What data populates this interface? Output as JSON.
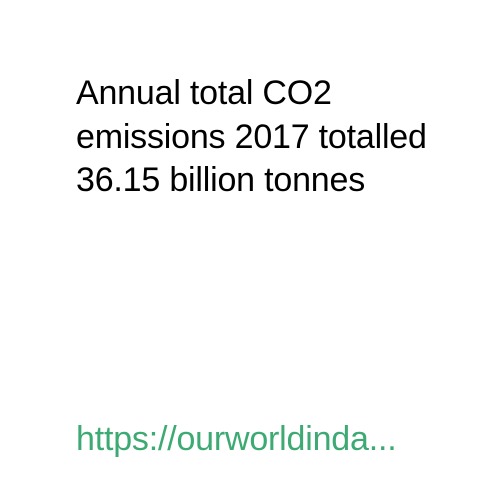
{
  "statement": {
    "text": "Annual total CO2 emissions 2017 totalled 36.15 billion tonnes"
  },
  "link": {
    "text": "https://ourworldinda...",
    "color": "#3daa73"
  },
  "colors": {
    "background": "#ffffff",
    "text": "#000000"
  }
}
